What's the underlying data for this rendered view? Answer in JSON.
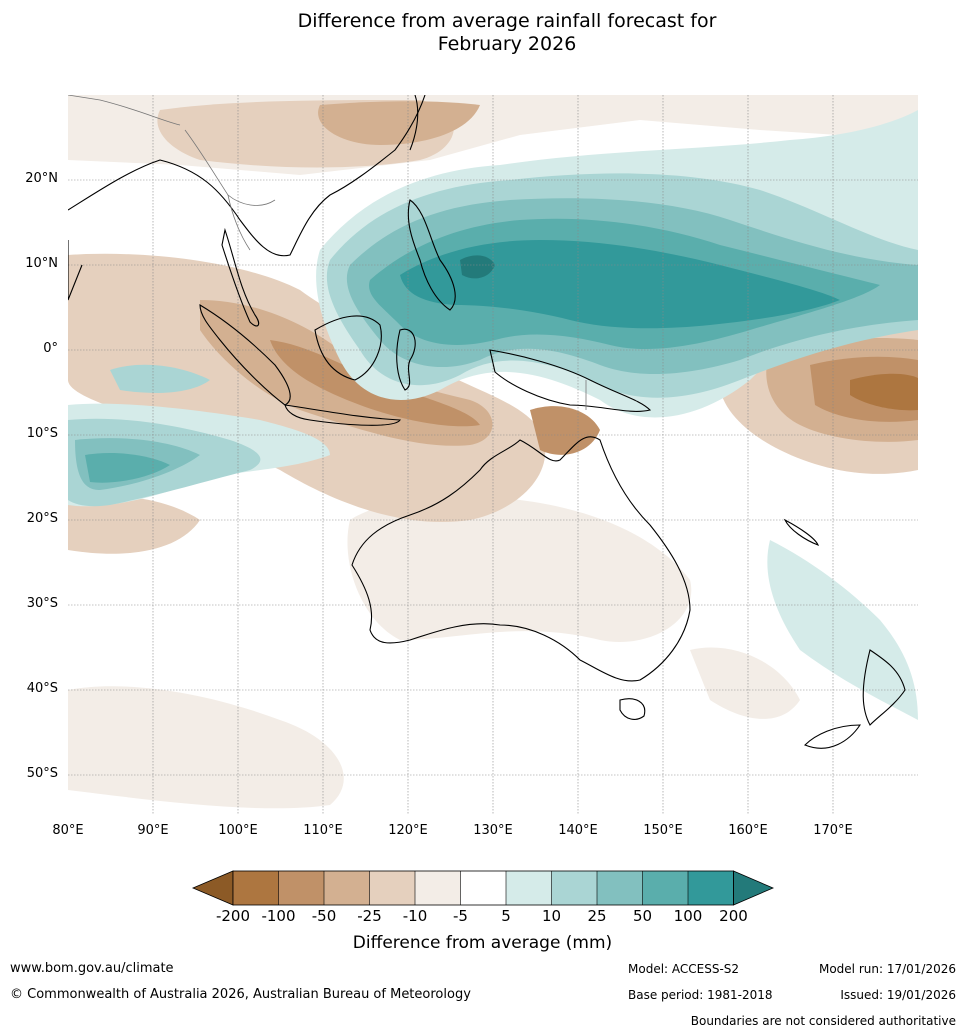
{
  "title": {
    "line1": "Difference from average rainfall forecast for",
    "line2": "February 2026"
  },
  "map": {
    "lat_labels": [
      "20°N",
      "10°N",
      "0°",
      "10°S",
      "20°S",
      "30°S",
      "40°S",
      "50°S"
    ],
    "lon_labels": [
      "80°E",
      "90°E",
      "100°E",
      "110°E",
      "120°E",
      "130°E",
      "140°E",
      "150°E",
      "160°E",
      "170°E"
    ],
    "colors": {
      "brown_extreme": "#8c5a26",
      "brown_200": "#ad7640",
      "brown_100": "#c09168",
      "brown_50": "#d3b091",
      "brown_25": "#e5d0be",
      "brown_10": "#f3ede7",
      "neutral": "#ffffff",
      "teal_5": "#d5ebe9",
      "teal_10": "#aad5d4",
      "teal_25": "#82c0bf",
      "teal_50": "#5aaeac",
      "teal_100": "#32999a",
      "teal_extreme": "#237a7a"
    }
  },
  "colorbar": {
    "ticks": [
      "-200",
      "-100",
      "-50",
      "-25",
      "-10",
      "-5",
      "5",
      "10",
      "25",
      "50",
      "100",
      "200"
    ],
    "label": "Difference from average (mm)"
  },
  "footer": {
    "website": "www.bom.gov.au/climate",
    "copyright": "© Commonwealth of Australia 2026, Australian Bureau of Meteorology",
    "model": "Model: ACCESS-S2",
    "base_period": "Base period: 1981-2018",
    "model_run": "Model run: 17/01/2026",
    "issued": "Issued: 19/01/2026",
    "disclaimer": "Boundaries are not considered authoritative"
  }
}
